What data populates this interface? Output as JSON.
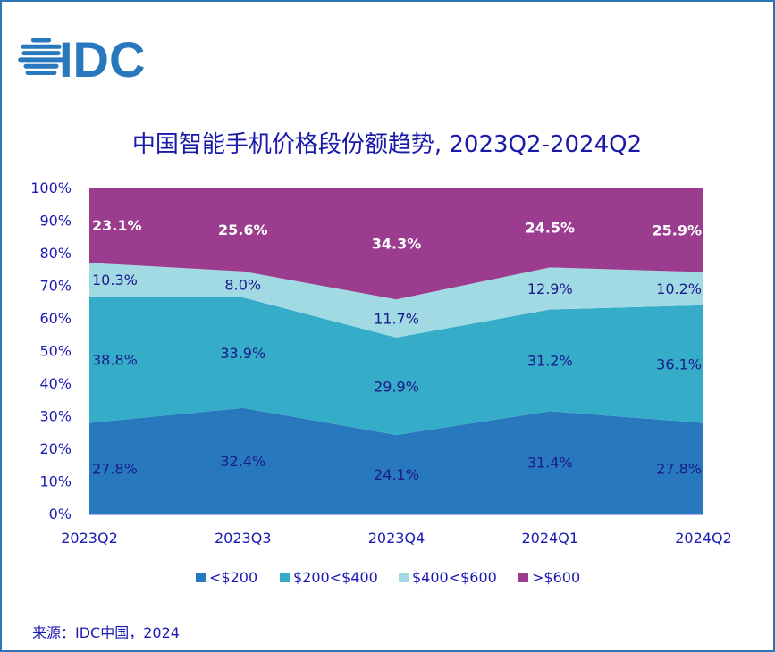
{
  "logo": {
    "text": "IDC",
    "color": "#2878bd"
  },
  "source": "来源：IDC中国，2024",
  "chart_data": {
    "type": "area",
    "stacked": true,
    "title": "中国智能手机价格段份额趋势, 2023Q2-2024Q2",
    "categories": [
      "2023Q2",
      "2023Q3",
      "2023Q4",
      "2024Q1",
      "2024Q2"
    ],
    "ylim": [
      0,
      100
    ],
    "yticks": [
      "0%",
      "10%",
      "20%",
      "30%",
      "40%",
      "50%",
      "60%",
      "70%",
      "80%",
      "90%",
      "100%"
    ],
    "grid": false,
    "legend_position": "bottom",
    "series": [
      {
        "name": "<$200",
        "color": "#2878bd",
        "values": [
          27.8,
          32.4,
          24.1,
          31.4,
          27.8
        ],
        "labels": [
          "27.8%",
          "32.4%",
          "24.1%",
          "31.4%",
          "27.8%"
        ]
      },
      {
        "name": "$200<$400",
        "color": "#36adc8",
        "values": [
          38.8,
          33.9,
          29.9,
          31.2,
          36.1
        ],
        "labels": [
          "38.8%",
          "33.9%",
          "29.9%",
          "31.2%",
          "36.1%"
        ]
      },
      {
        "name": "$400<$600",
        "color": "#a2dae4",
        "values": [
          10.3,
          8.0,
          11.7,
          12.9,
          10.2
        ],
        "labels": [
          "10.3%",
          "8.0%",
          "11.7%",
          "12.9%",
          "10.2%"
        ]
      },
      {
        "name": ">$600",
        "color": "#9b3c8f",
        "values": [
          23.1,
          25.6,
          34.3,
          24.5,
          25.9
        ],
        "labels": [
          "23.1%",
          "25.6%",
          "34.3%",
          "24.5%",
          "25.9%"
        ]
      }
    ]
  }
}
